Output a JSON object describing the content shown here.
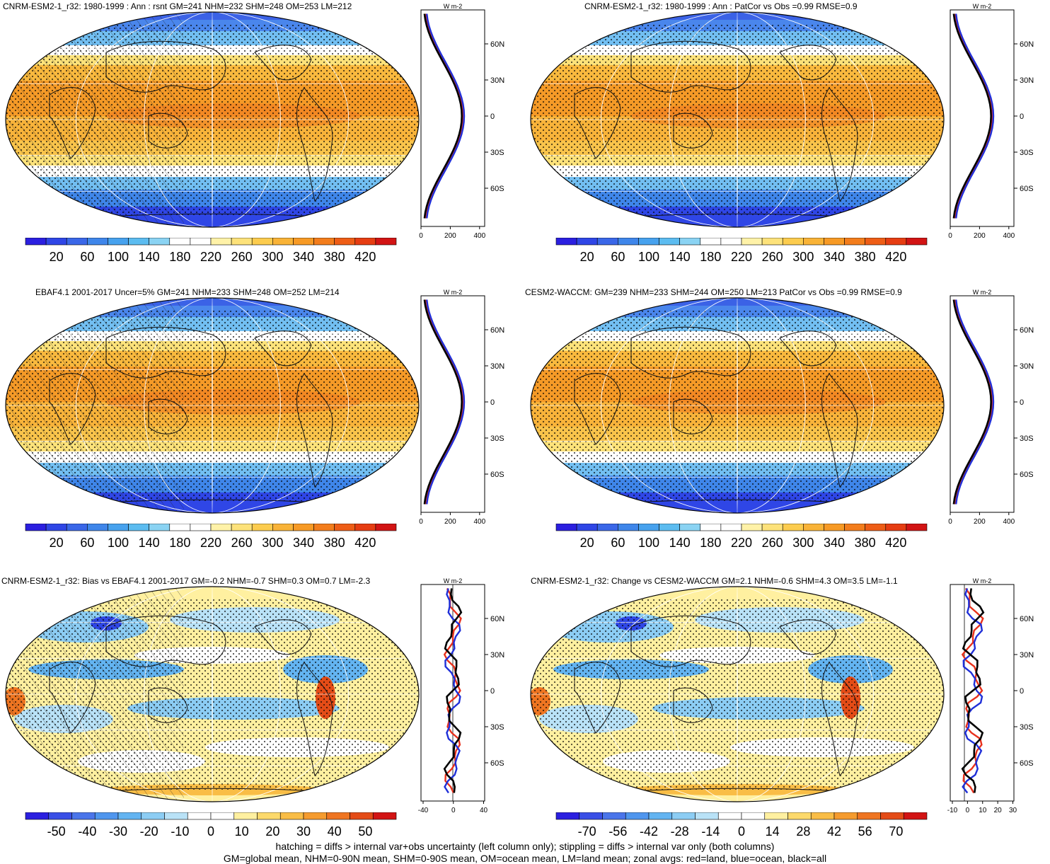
{
  "panels": [
    {
      "title": "CNRM-ESM2-1_r32: 1980-1999 : Ann : rsnt GM=241 NHM=232 SHM=248 OM=253 LM=212",
      "cb_labels": [
        "20",
        "60",
        "100",
        "140",
        "180",
        "220",
        "260",
        "300",
        "340",
        "380",
        "420"
      ],
      "zonal_ticks": [
        "0",
        "200",
        "400"
      ],
      "lat_ticks": [
        "60N",
        "30N",
        "0",
        "30S",
        "60S"
      ],
      "unit": "W m-2"
    },
    {
      "title": "CNRM-ESM2-1_r32: 1980-1999 : Ann : PatCor vs Obs =0.99 RMSE=0.9",
      "cb_labels": [
        "20",
        "60",
        "100",
        "140",
        "180",
        "220",
        "260",
        "300",
        "340",
        "380",
        "420"
      ],
      "zonal_ticks": [
        "0",
        "200",
        "400"
      ],
      "lat_ticks": [
        "60N",
        "30N",
        "0",
        "30S",
        "60S"
      ],
      "unit": "W m-2"
    },
    {
      "title": "EBAF4.1 2001-2017 Uncer=5% GM=241 NHM=233 SHM=248 OM=252 LM=214",
      "cb_labels": [
        "20",
        "60",
        "100",
        "140",
        "180",
        "220",
        "260",
        "300",
        "340",
        "380",
        "420"
      ],
      "zonal_ticks": [
        "0",
        "200",
        "400"
      ],
      "lat_ticks": [
        "60N",
        "30N",
        "0",
        "30S",
        "60S"
      ],
      "unit": "W m-2"
    },
    {
      "title": "CESM2-WACCM: GM=239 NHM=233 SHM=244 OM=250 LM=213 PatCor vs Obs =0.99 RMSE=0.9",
      "cb_labels": [
        "20",
        "60",
        "100",
        "140",
        "180",
        "220",
        "260",
        "300",
        "340",
        "380",
        "420"
      ],
      "zonal_ticks": [
        "0",
        "200",
        "400"
      ],
      "lat_ticks": [
        "60N",
        "30N",
        "0",
        "30S",
        "60S"
      ],
      "unit": "W m-2"
    },
    {
      "title": "CNRM-ESM2-1_r32: Bias vs EBAF4.1 2001-2017 GM=-0.2 NHM=-0.7 SHM=0.3 OM=0.7 LM=-2.3",
      "cb_labels": [
        "-50",
        "-40",
        "-30",
        "-20",
        "-10",
        "0",
        "10",
        "20",
        "30",
        "40",
        "50"
      ],
      "zonal_ticks": [
        "-40",
        "0",
        "40"
      ],
      "lat_ticks": [
        "60N",
        "30N",
        "0",
        "30S",
        "60S"
      ],
      "unit": "W m-2"
    },
    {
      "title": "CNRM-ESM2-1_r32: Change vs CESM2-WACCM GM=2.1 NHM=-0.6 SHM=4.3 OM=3.5 LM=-1.1",
      "cb_labels": [
        "-70",
        "-56",
        "-42",
        "-28",
        "-14",
        "0",
        "14",
        "28",
        "42",
        "56",
        "70"
      ],
      "zonal_ticks": [
        "-10",
        "0",
        "10",
        "20",
        "30"
      ],
      "lat_ticks": [
        "60N",
        "30N",
        "0",
        "30S",
        "60S"
      ],
      "unit": "W m-2"
    }
  ],
  "colors": {
    "abs": [
      "#2b1fe0",
      "#2f46e6",
      "#3a67e8",
      "#3f86ea",
      "#47a2ee",
      "#5cbcf0",
      "#8ad3f3",
      "#ffffff",
      "#ffffff",
      "#fff2a8",
      "#fde27a",
      "#fccc4e",
      "#f9b337",
      "#f79a25",
      "#f37d1c",
      "#ee5d16",
      "#e63d12",
      "#d21414"
    ],
    "diff": [
      "#2b1fe0",
      "#3a4fe6",
      "#4a75ea",
      "#4f96ee",
      "#63b4f1",
      "#8ccdf4",
      "#b9e2f7",
      "#ffffff",
      "#ffffff",
      "#fff0a0",
      "#fcd96b",
      "#f9bd46",
      "#f59b2e",
      "#ef7521",
      "#e44c17",
      "#d21414"
    ],
    "land": "#e8311c",
    "ocean": "#1f2fd8",
    "all": "#000000"
  },
  "footer": {
    "line1": "hatching = diffs > internal var+obs uncertainty (left column only); stippling = diffs > internal var only (both columns)",
    "line2": "GM=global mean, NHM=0-90N mean, SHM=0-90S mean, OM=ocean mean, LM=land mean; zonal avgs: red=land, blue=ocean, black=all"
  }
}
